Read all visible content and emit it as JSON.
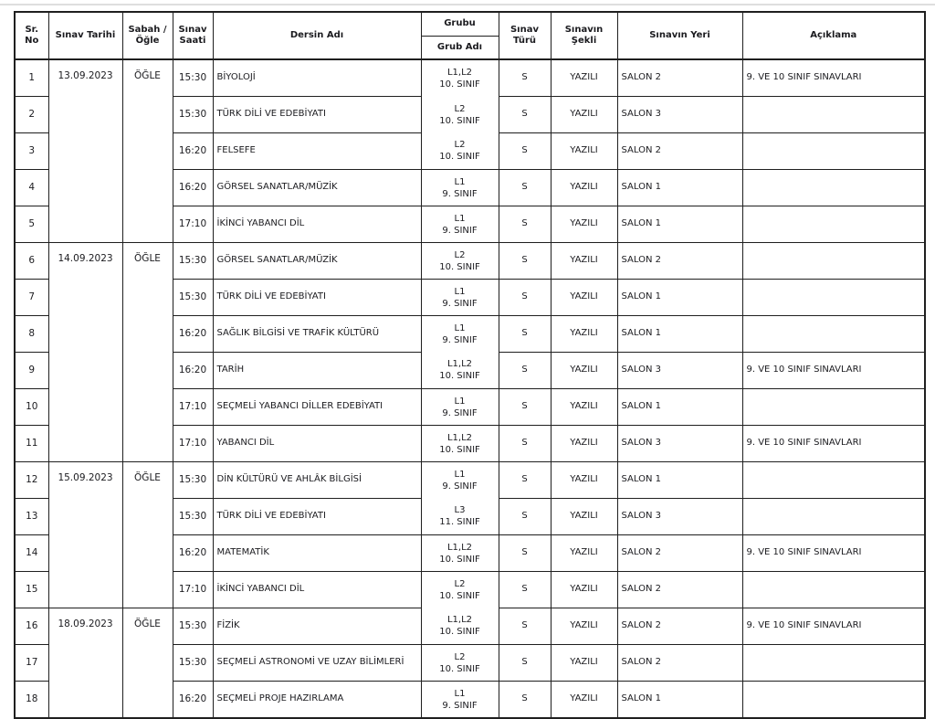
{
  "page": {
    "background": "#ffffff",
    "border_color": "#1f1f1f",
    "text_color": "#1b1b1f"
  },
  "table": {
    "headers": {
      "sr_no": "Sr.\nNo",
      "date": "Sınav Tarihi",
      "session": "Sabah /\nÖğle",
      "time": "Sınav\nSaati",
      "course": "Dersin Adı",
      "group": "Grubu",
      "group_sub": "Grub Adı",
      "type": "Sınav\nTürü",
      "format": "Sınavın\nŞekli",
      "place": "Sınavın Yeri",
      "note": "Açıklama"
    },
    "rows": [
      {
        "no": "1",
        "date": "13.09.2023",
        "session": "ÖĞLE",
        "date_rowspan": 5,
        "time": "15:30",
        "course": "BİYOLOJİ",
        "group": "L1,L2",
        "group_name": "10. SINIF",
        "type": "S",
        "format": "YAZILI",
        "place": "SALON 2",
        "note": "9. VE 10 SINIF SINAVLARI",
        "group_sep_below": false
      },
      {
        "no": "2",
        "time": "15:30",
        "course": "TÜRK DİLİ VE EDEBİYATI",
        "group": "L2",
        "group_name": "10. SINIF",
        "type": "S",
        "format": "YAZILI",
        "place": "SALON 3",
        "note": "",
        "group_sep_below": false
      },
      {
        "no": "3",
        "time": "16:20",
        "course": "FELSEFE",
        "group": "L2",
        "group_name": "10. SINIF",
        "type": "S",
        "format": "YAZILI",
        "place": "SALON 2",
        "note": ""
      },
      {
        "no": "4",
        "time": "16:20",
        "course": "GÖRSEL SANATLAR/MÜZİK",
        "group": "L1",
        "group_name": "9. SINIF",
        "type": "S",
        "format": "YAZILI",
        "place": "SALON 1",
        "note": ""
      },
      {
        "no": "5",
        "time": "17:10",
        "course": "İKİNCİ YABANCI DİL",
        "group": "L1",
        "group_name": "9. SINIF",
        "type": "S",
        "format": "YAZILI",
        "place": "SALON 1",
        "note": ""
      },
      {
        "no": "6",
        "date": "14.09.2023",
        "session": "ÖĞLE",
        "date_rowspan": 6,
        "time": "15:30",
        "course": "GÖRSEL SANATLAR/MÜZİK",
        "group": "L2",
        "group_name": "10. SINIF",
        "type": "S",
        "format": "YAZILI",
        "place": "SALON 2",
        "note": ""
      },
      {
        "no": "7",
        "time": "15:30",
        "course": "TÜRK DİLİ VE EDEBİYATI",
        "group": "L1",
        "group_name": "9. SINIF",
        "type": "S",
        "format": "YAZILI",
        "place": "SALON 1",
        "note": ""
      },
      {
        "no": "8",
        "time": "16:20",
        "course": "SAĞLIK BİLGİSİ VE TRAFİK KÜLTÜRÜ",
        "group": "L1",
        "group_name": "9. SINIF",
        "type": "S",
        "format": "YAZILI",
        "place": "SALON 1",
        "note": "",
        "group_sep_below": false
      },
      {
        "no": "9",
        "time": "16:20",
        "course": "TARİH",
        "group": "L1,L2",
        "group_name": "10. SINIF",
        "type": "S",
        "format": "YAZILI",
        "place": "SALON 3",
        "note": "9. VE 10 SINIF SINAVLARI"
      },
      {
        "no": "10",
        "time": "17:10",
        "course": "SEÇMELİ YABANCI DİLLER EDEBİYATI",
        "group": "L1",
        "group_name": "9. SINIF",
        "type": "S",
        "format": "YAZILI",
        "place": "SALON 1",
        "note": ""
      },
      {
        "no": "11",
        "time": "17:10",
        "course": "YABANCI DİL",
        "group": "L1,L2",
        "group_name": "10. SINIF",
        "type": "S",
        "format": "YAZILI",
        "place": "SALON 3",
        "note": "9. VE 10 SINIF SINAVLARI"
      },
      {
        "no": "12",
        "date": "15.09.2023",
        "session": "ÖĞLE",
        "date_rowspan": 4,
        "time": "15:30",
        "course": "DİN KÜLTÜRÜ VE AHLÂK BİLGİSİ",
        "group": "L1",
        "group_name": "9. SINIF",
        "type": "S",
        "format": "YAZILI",
        "place": "SALON 1",
        "note": "",
        "group_sep_below": false
      },
      {
        "no": "13",
        "time": "15:30",
        "course": "TÜRK DİLİ VE EDEBİYATI",
        "group": "L3",
        "group_name": "11. SINIF",
        "type": "S",
        "format": "YAZILI",
        "place": "SALON 3",
        "note": ""
      },
      {
        "no": "14",
        "time": "16:20",
        "course": "MATEMATİK",
        "group": "L1,L2",
        "group_name": "10. SINIF",
        "type": "S",
        "format": "YAZILI",
        "place": "SALON 2",
        "note": "9. VE 10 SINIF SINAVLARI"
      },
      {
        "no": "15",
        "time": "17:10",
        "course": "İKİNCİ YABANCI DİL",
        "group": "L2",
        "group_name": "10. SINIF",
        "type": "S",
        "format": "YAZILI",
        "place": "SALON 2",
        "note": "",
        "group_sep_below": false
      },
      {
        "no": "16",
        "date": "18.09.2023",
        "session": "ÖĞLE",
        "date_rowspan": 3,
        "time": "15:30",
        "course": "FİZİK",
        "group": "L1,L2",
        "group_name": "10. SINIF",
        "type": "S",
        "format": "YAZILI",
        "place": "SALON 2",
        "note": "9. VE 10 SINIF SINAVLARI"
      },
      {
        "no": "17",
        "time": "15:30",
        "course": "SEÇMELİ ASTRONOMİ VE UZAY BİLİMLERİ",
        "group": "L2",
        "group_name": "10. SINIF",
        "type": "S",
        "format": "YAZILI",
        "place": "SALON 2",
        "note": ""
      },
      {
        "no": "18",
        "time": "16:20",
        "course": "SEÇMELİ PROJE HAZIRLAMA",
        "group": "L1",
        "group_name": "9. SINIF",
        "type": "S",
        "format": "YAZILI",
        "place": "SALON 1",
        "note": ""
      }
    ]
  }
}
